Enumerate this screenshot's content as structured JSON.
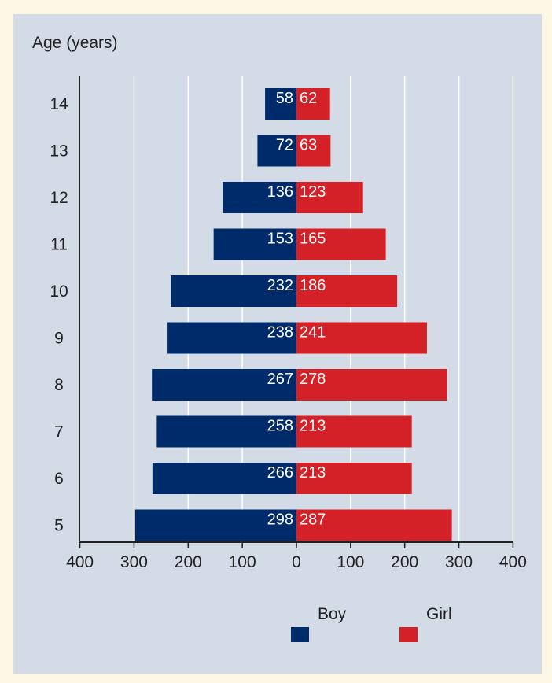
{
  "chart_data": {
    "type": "bar",
    "subtype": "population-pyramid",
    "ylabel": "Age (years)",
    "categories": [
      "14",
      "13",
      "12",
      "11",
      "10",
      "9",
      "8",
      "7",
      "6",
      "5"
    ],
    "series": [
      {
        "name": "Boy",
        "color": "#002b6b",
        "values": [
          58,
          72,
          136,
          153,
          232,
          238,
          267,
          258,
          266,
          298
        ]
      },
      {
        "name": "Girl",
        "color": "#d42027",
        "values": [
          62,
          63,
          123,
          165,
          186,
          241,
          278,
          213,
          213,
          287
        ]
      }
    ],
    "xticks": [
      "400",
      "300",
      "200",
      "100",
      "0",
      "100",
      "200",
      "300",
      "400"
    ],
    "xlim": [
      -400,
      400
    ],
    "grid": "vertical",
    "legend": "bottom"
  },
  "colors": {
    "background": "#d2dbe6",
    "grid": "#ffffff",
    "axis": "#222222"
  }
}
